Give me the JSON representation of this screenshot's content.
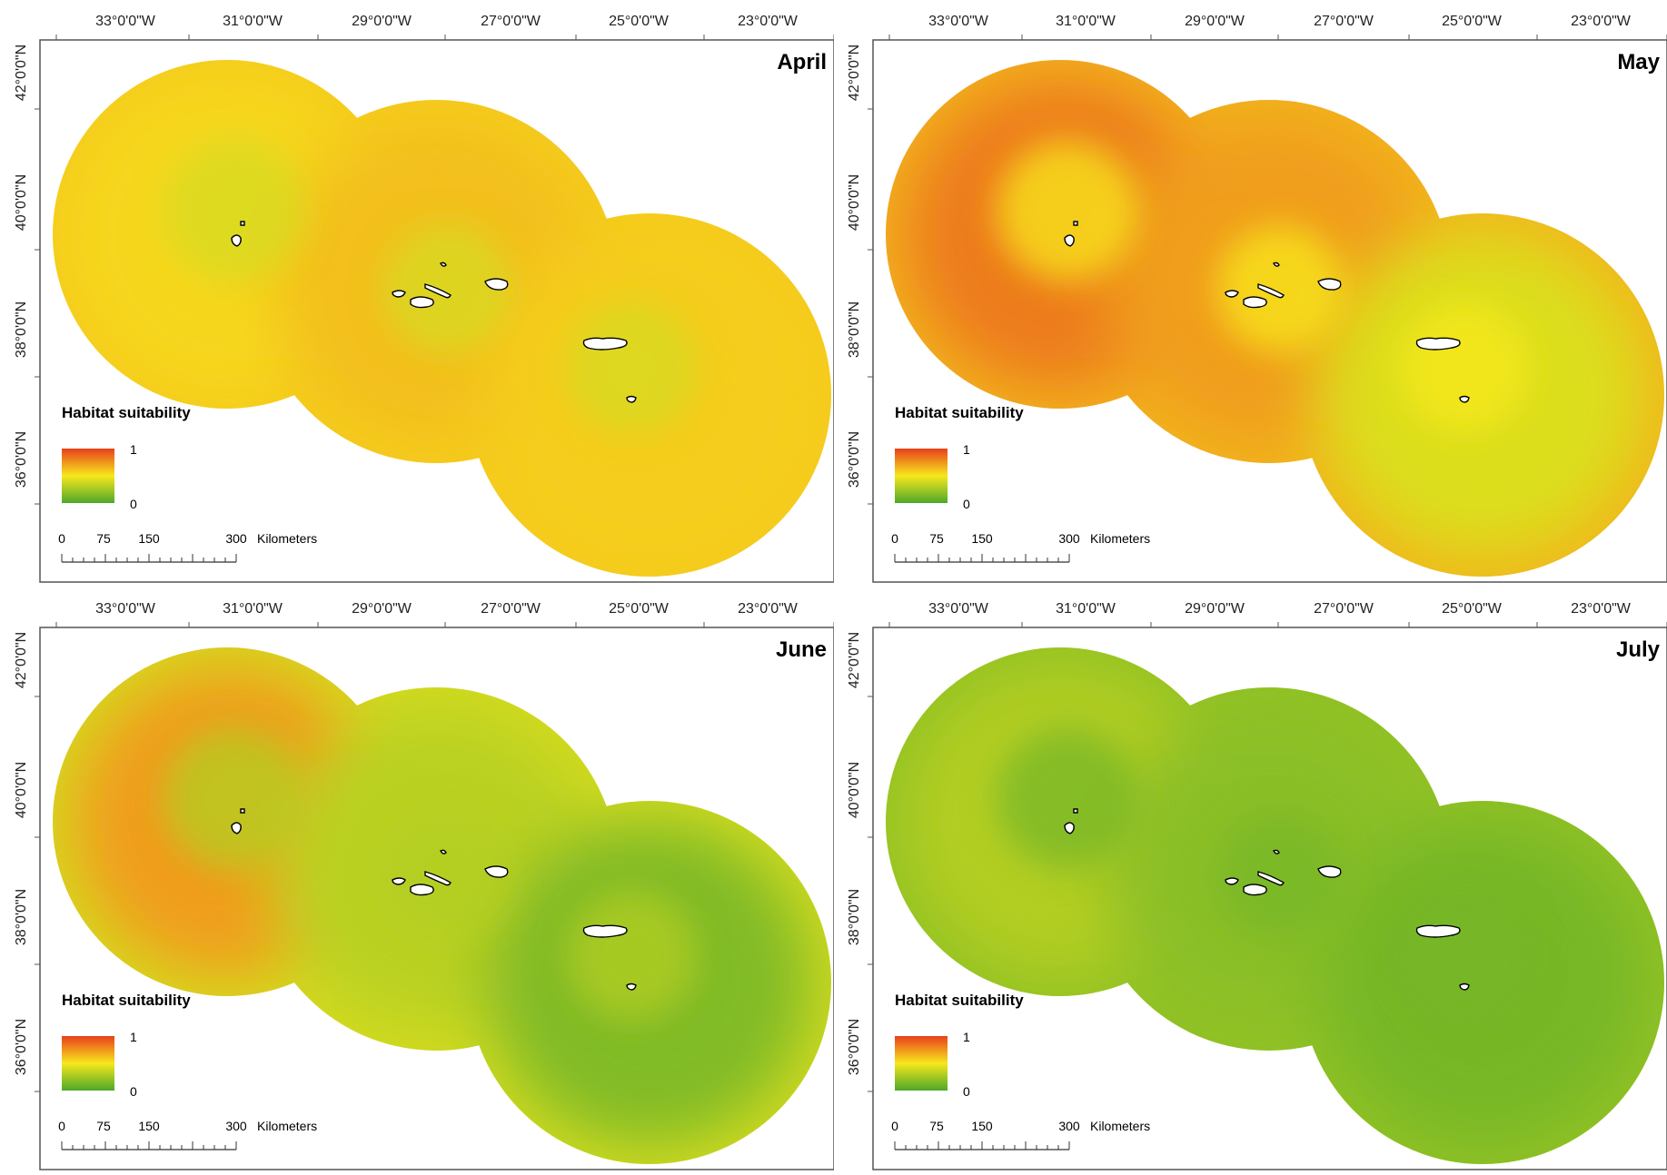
{
  "lon_labels": [
    "33°0'0\"W",
    "31°0'0\"W",
    "29°0'0\"W",
    "27°0'0\"W",
    "25°0'0\"W",
    "23°0'0\"W"
  ],
  "lat_labels": [
    "42°0'0\"N",
    "40°0'0\"N",
    "38°0'0\"N",
    "36°0'0\"N"
  ],
  "legend": {
    "title": "Habitat suitability",
    "max": "1",
    "min": "0"
  },
  "scale_bar": {
    "labels": [
      "0",
      "75",
      "150",
      "300"
    ],
    "unit": "Kilometers"
  },
  "colors": {
    "high": "#e8401c",
    "mid": "#f7e81c",
    "low": "#4ea82a",
    "island_fill": "#ffffff",
    "island_stroke": "#000000"
  },
  "panels": [
    {
      "month": "April",
      "suitability": {
        "west": 0.55,
        "central": 0.62,
        "east": 0.58,
        "core": 0.4
      }
    },
    {
      "month": "May",
      "suitability": {
        "west": 0.82,
        "central": 0.72,
        "east": 0.42,
        "core": 0.5
      }
    },
    {
      "month": "June",
      "suitability": {
        "west": 0.72,
        "central": 0.32,
        "east": 0.15,
        "core": 0.3
      }
    },
    {
      "month": "July",
      "suitability": {
        "west": 0.3,
        "central": 0.18,
        "east": 0.12,
        "core": 0.12
      }
    }
  ]
}
